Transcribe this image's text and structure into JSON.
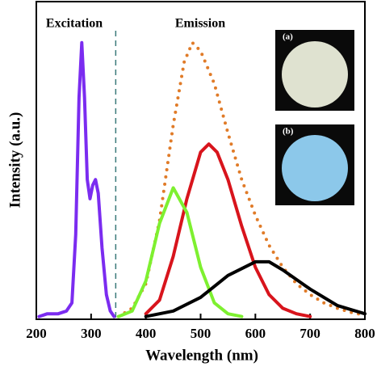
{
  "chart_data": {
    "type": "line",
    "xlabel": "Wavelength (nm)",
    "ylabel": "Intensity (a.u.)",
    "xlim": [
      200,
      800
    ],
    "xticks": [
      200,
      300,
      400,
      500,
      600,
      700,
      800
    ],
    "ylim": [
      -0.01,
      1.15
    ],
    "annotations": [
      "Excitation",
      "Emission"
    ],
    "divider_x": [
      345
    ],
    "insets": [
      "(a)",
      "(b)"
    ],
    "series": [
      {
        "color": "#7b2cf0",
        "dash": "solid",
        "x": [
          205,
          220,
          240,
          255,
          265,
          272,
          278,
          283,
          288,
          293,
          298,
          303,
          308,
          313,
          320,
          328,
          335,
          342
        ],
        "values": [
          0,
          0.01,
          0.01,
          0.02,
          0.05,
          0.3,
          0.8,
          1.0,
          0.8,
          0.5,
          0.43,
          0.48,
          0.5,
          0.45,
          0.25,
          0.08,
          0.02,
          0
        ]
      },
      {
        "color": "#e07b28",
        "dash": "dotted",
        "x": [
          350,
          375,
          400,
          425,
          450,
          470,
          485,
          500,
          525,
          550,
          575,
          600,
          625,
          650,
          675,
          700,
          725,
          750,
          775,
          800
        ],
        "values": [
          0,
          0.03,
          0.12,
          0.35,
          0.7,
          0.93,
          1.0,
          0.97,
          0.85,
          0.67,
          0.5,
          0.37,
          0.26,
          0.18,
          0.12,
          0.08,
          0.05,
          0.03,
          0.015,
          0.005
        ]
      },
      {
        "color": "#d8141c",
        "dash": "solid",
        "x": [
          400,
          425,
          450,
          475,
          500,
          515,
          530,
          550,
          575,
          600,
          625,
          650,
          675,
          700
        ],
        "values": [
          0.01,
          0.06,
          0.22,
          0.43,
          0.6,
          0.63,
          0.6,
          0.5,
          0.33,
          0.18,
          0.08,
          0.03,
          0.01,
          0
        ]
      },
      {
        "color": "#7ef030",
        "dash": "solid",
        "x": [
          350,
          375,
          400,
          425,
          450,
          475,
          500,
          525,
          550,
          575
        ],
        "values": [
          0,
          0.02,
          0.13,
          0.34,
          0.47,
          0.38,
          0.18,
          0.05,
          0.01,
          0
        ]
      },
      {
        "color": "#000000",
        "dash": "solid",
        "x": [
          400,
          450,
          500,
          550,
          600,
          625,
          650,
          700,
          750,
          800
        ],
        "values": [
          0,
          0.02,
          0.07,
          0.15,
          0.2,
          0.2,
          0.17,
          0.1,
          0.04,
          0.01
        ]
      }
    ]
  }
}
